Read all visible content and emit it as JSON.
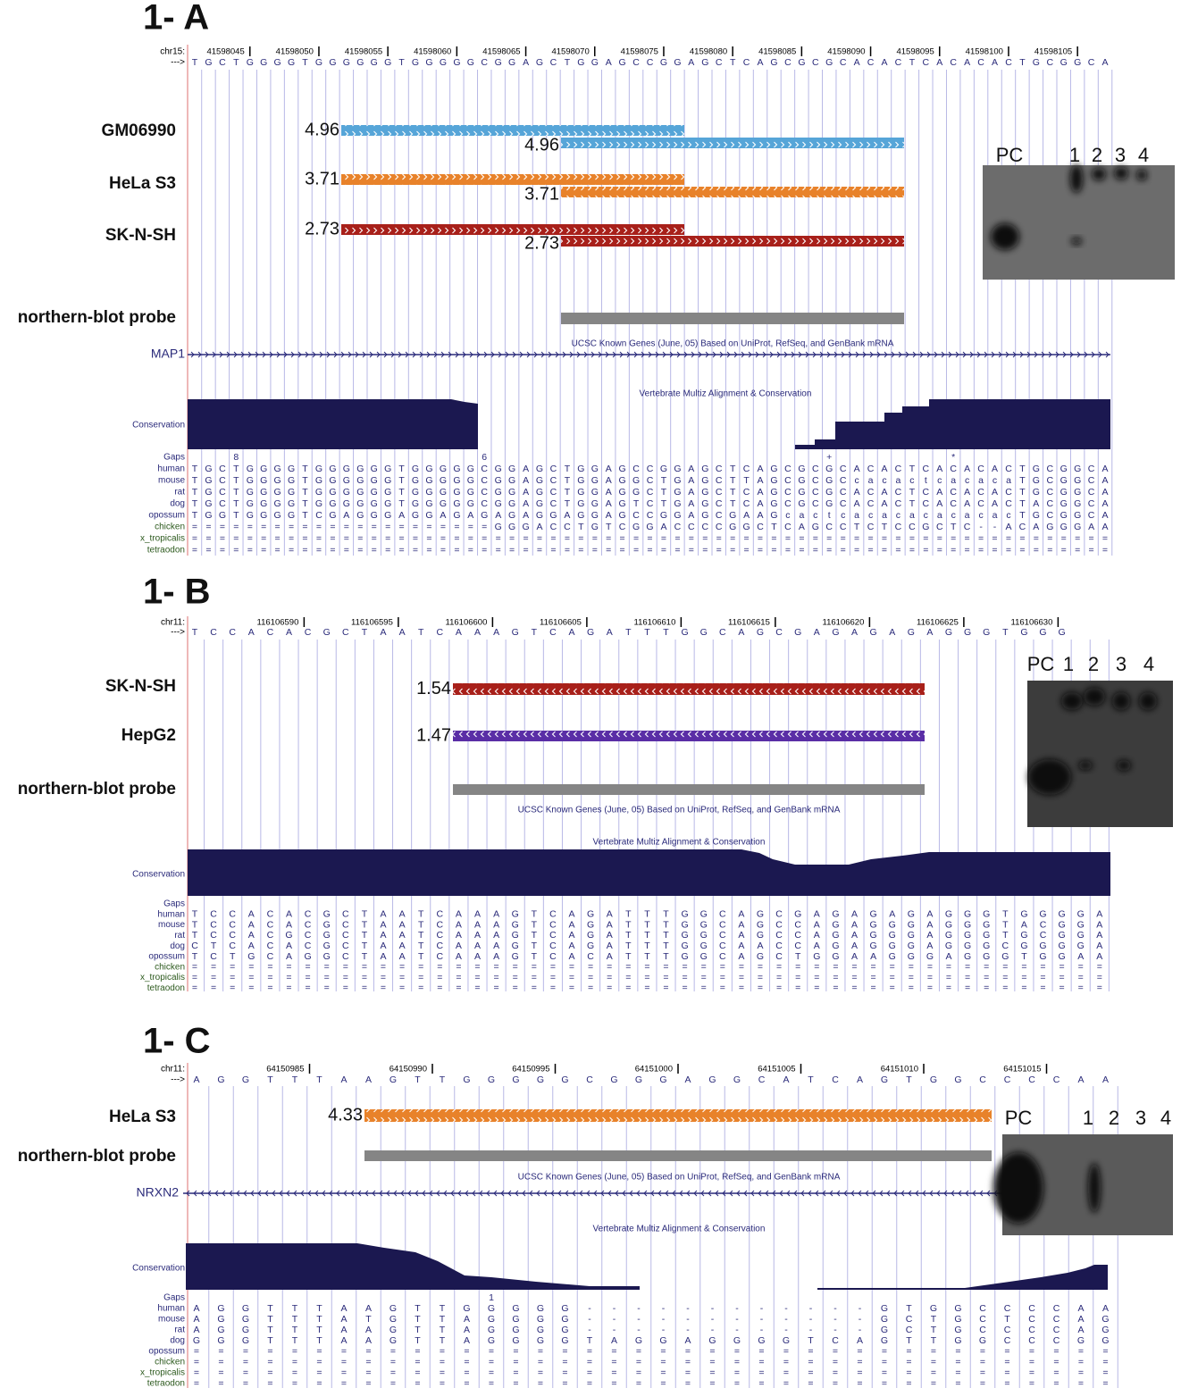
{
  "panels": [
    {
      "label": "1- A",
      "chrom": "chr15:",
      "strand": "--->",
      "positions": [
        41598045,
        41598050,
        41598055,
        41598060,
        41598065,
        41598070,
        41598075,
        41598080,
        41598085,
        41598090,
        41598095,
        41598100,
        41598105
      ],
      "sequence": "TGCTGGGGTGGGGGGTGGGGGCGGAGCTGGAGCCGGAGCTCAGCGCGCACACTCACACACTGCGGCA",
      "tracks": [
        {
          "name": "GM06990",
          "scores": [
            4.96,
            4.96
          ]
        },
        {
          "name": "HeLa S3",
          "scores": [
            3.71,
            3.71
          ]
        },
        {
          "name": "SK-N-SH",
          "scores": [
            2.73,
            2.73
          ]
        }
      ],
      "probe": "northern-blot probe",
      "gene": "MAP1",
      "genes_caption": "UCSC Known Genes (June, 05) Based on UniProt, RefSeq, and GenBank mRNA",
      "conservation_caption": "Vertebrate Multiz Alignment & Conservation",
      "conservation_label": "Conservation",
      "alignment": [
        {
          "species": "Gaps",
          "sequence": "   8                 6                        +        *"
        },
        {
          "species": "human",
          "sequence": "TGCTGGGGTGGGGGGTGGGGGCGGAGCTGGAGCCGGAGCTCAGCGCGCACACTCACACACTGCGGCA"
        },
        {
          "species": "mouse",
          "sequence": "TGCTGGGGTGGGGGGTGGGGGCGGAGCTGGAGGCTGAGCTTAGCGCGCcacactcacacaTGCGGCA"
        },
        {
          "species": "rat",
          "sequence": "TGCTGGGGTGGGGGGTGGGGGCGGAGCTGGAGGCTGAGCTCAGCGCGCACACTCACACACTGCGGCA"
        },
        {
          "species": "dog",
          "sequence": "TGCTGGGGTGGGGGGTGGGGGCGGAGCTGGAGTCTGAGCTCAGCGCGCACACTCACACACTACGGCA"
        },
        {
          "species": "opossum",
          "sequence": "TGGTGGGGTCGAGGGAGGAGAGAGAGGAGGAGCCGGAGCGAAGcactcacacacacacacTGCGGCA"
        },
        {
          "species": "chicken",
          "sequence": "======================GGGACCTGTCGGACCCCGGCTCAGCCTCTCCGCTC--ACAGGGAA"
        },
        {
          "species": "x_tropicalis",
          "sequence": "==================================================================="
        },
        {
          "species": "tetraodon",
          "sequence": "==================================================================="
        }
      ],
      "blot_lanes": [
        "PC",
        "1",
        "2",
        "3",
        "4"
      ]
    },
    {
      "label": "1- B",
      "chrom": "chr11:",
      "strand": "--->",
      "positions": [
        116106590,
        116106595,
        116106600,
        116106605,
        116106610,
        116106615,
        116106620,
        116106625,
        116106630
      ],
      "sequence": "TCCACACGCTAATCAAAGTCAGATTTGGCAGCGAGAGAGAGGGTGGG",
      "tracks": [
        {
          "name": "SK-N-SH",
          "scores": [
            1.54
          ]
        },
        {
          "name": "HepG2",
          "scores": [
            1.47
          ]
        }
      ],
      "probe": "northern-blot probe",
      "genes_caption": "UCSC Known Genes (June, 05) Based on UniProt, RefSeq, and GenBank mRNA",
      "conservation_caption": "Vertebrate Multiz Alignment & Conservation",
      "conservation_label": "Conservation",
      "alignment": [
        {
          "species": "Gaps"
        },
        {
          "species": "human",
          "sequence": "TCCACACGCTAATCAAAGTCAGATTTGGCAGCGAGAGAGAGGGTGGGGA"
        },
        {
          "species": "mouse",
          "sequence": "TCCACACGCTAATCAAAGTCAGATTTGGCAGCCAGAGGGAGGGTACGGA"
        },
        {
          "species": "rat",
          "sequence": "TCCACGCGCTAATCAAAGTCAGATTTGGCAGCCAGAGGGAGGGTGCGGA"
        },
        {
          "species": "dog",
          "sequence": "CTCACACGCTAATCAAAGTCAGATTTGGCAACCAGAGGGAGGGCGGGGA"
        },
        {
          "species": "opossum",
          "sequence": "TCTGCAGGCTAATCAAAGTCACATTTGGCAGCTGGAAGGGAGGGTGGAA"
        },
        {
          "species": "chicken",
          "sequence": "================================================="
        },
        {
          "species": "x_tropicalis",
          "sequence": "================================================="
        },
        {
          "species": "tetraodon",
          "sequence": "================================================="
        }
      ],
      "blot_lanes": [
        "PC",
        "1",
        "2",
        "3",
        "4"
      ]
    },
    {
      "label": "1- C",
      "chrom": "chr11:",
      "strand": "--->",
      "positions": [
        64150985,
        64150990,
        64150995,
        64151000,
        64151005,
        64151010,
        64151015
      ],
      "sequence": "AGGTTTAAGTTGGGGGCGGGAGGCATCAGTGGCCCCAA",
      "tracks": [
        {
          "name": "HeLa S3",
          "scores": [
            4.33
          ]
        }
      ],
      "probe": "northern-blot probe",
      "gene": "NRXN2",
      "genes_caption": "UCSC Known Genes (June, 05) Based on UniProt, RefSeq, and GenBank mRNA",
      "conservation_caption": "Vertebrate Multiz Alignment & Conservation",
      "conservation_label": "Conservation",
      "alignment": [
        {
          "species": "Gaps",
          "sequence": "            1"
        },
        {
          "species": "human",
          "sequence": "AGGTTTAAGTTGGGGG------------GTGGCCCCAA"
        },
        {
          "species": "mouse",
          "sequence": "AGGTTTATGTTAGGGG------------GCTGCTCCAG"
        },
        {
          "species": "rat",
          "sequence": "AGGTTTAAGTTAGGGG------------GCTGCCCCAG"
        },
        {
          "species": "dog",
          "sequence": "GGGTTTAAGTTAGGGGTAGGAGGGGTCAGTTGGCCCGG"
        },
        {
          "species": "opossum",
          "sequence": "======================================"
        },
        {
          "species": "chicken",
          "sequence": "======================================"
        },
        {
          "species": "x_tropicalis",
          "sequence": "======================================"
        },
        {
          "species": "tetraodon",
          "sequence": "======================================"
        }
      ],
      "blot_lanes": [
        "PC",
        "1",
        "2",
        "3",
        "4"
      ]
    }
  ]
}
